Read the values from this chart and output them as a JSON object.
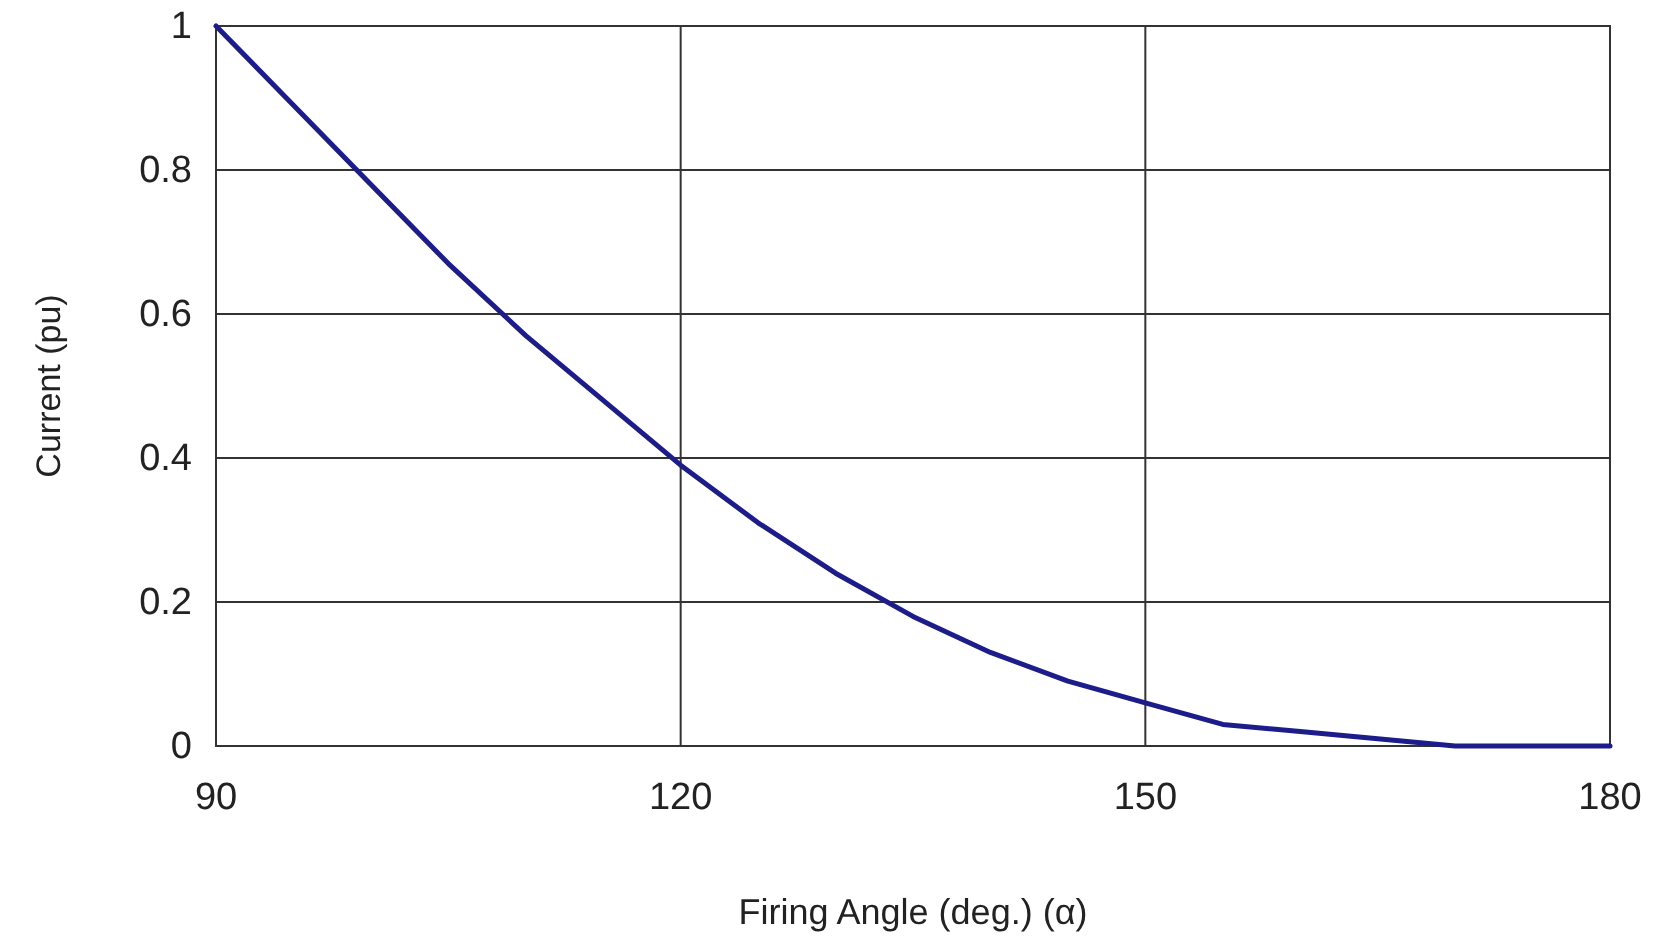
{
  "chart_data": {
    "type": "line",
    "xlabel": "Firing Angle (deg.) (α)",
    "ylabel": "Current (pu)",
    "x": [
      90,
      95,
      100,
      105,
      110,
      115,
      120,
      125,
      130,
      135,
      140,
      145,
      150,
      155,
      160,
      165,
      170,
      175,
      180
    ],
    "series": [
      {
        "color": "#1c1c8a",
        "values": [
          1,
          0.89,
          0.78,
          0.67,
          0.57,
          0.48,
          0.39,
          0.31,
          0.24,
          0.18,
          0.13,
          0.09,
          0.06,
          0.03,
          0.02,
          0.01,
          0,
          0,
          0
        ]
      }
    ],
    "xlim": [
      90,
      180
    ],
    "xticks": [
      90,
      120,
      150,
      180
    ],
    "ylim": [
      0,
      1
    ],
    "yticks": [
      0,
      0.2,
      0.4,
      0.6,
      0.8,
      1
    ],
    "grid": true,
    "line_style": "solid",
    "marker": "none"
  }
}
